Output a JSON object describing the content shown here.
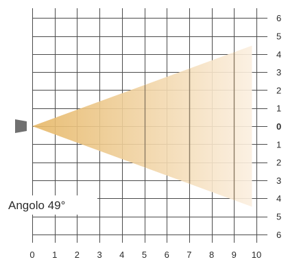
{
  "angle_label": "Angolo 49°",
  "x_ticks": [
    "0",
    "1",
    "2",
    "3",
    "4",
    "5",
    "6",
    "7",
    "8",
    "9",
    "10"
  ],
  "y_ticks_top": [
    "6",
    "5",
    "4",
    "3",
    "2",
    "1"
  ],
  "y_tick_center": "0",
  "y_ticks_bottom": [
    "1",
    "2",
    "3",
    "4",
    "5",
    "6"
  ],
  "beam": {
    "angle_deg": 49,
    "range_x": [
      0,
      10
    ],
    "range_y": [
      -6.5,
      6.5
    ],
    "color_near": "#e6b766",
    "color_far": "#fbefe0",
    "source_color": "#707070"
  }
}
